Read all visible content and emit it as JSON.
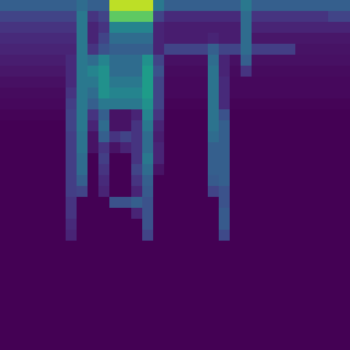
{
  "chart_data": {
    "type": "heatmap",
    "color": "viridis",
    "tick_labels": false,
    "zlim": [
      0,
      100
    ],
    "cells": [
      [
        30,
        30,
        30,
        30,
        30,
        30,
        30,
        35,
        30,
        30,
        90,
        90,
        90,
        90,
        40,
        30,
        30,
        30,
        30,
        30,
        30,
        30,
        40,
        30,
        30,
        30,
        30,
        30,
        30,
        30,
        30,
        30
      ],
      [
        20,
        20,
        20,
        20,
        20,
        20,
        20,
        40,
        15,
        20,
        75,
        75,
        75,
        75,
        20,
        12,
        12,
        12,
        12,
        12,
        12,
        12,
        35,
        15,
        15,
        15,
        15,
        15,
        15,
        15,
        20,
        20
      ],
      [
        15,
        15,
        15,
        15,
        15,
        15,
        15,
        40,
        10,
        15,
        45,
        45,
        45,
        45,
        10,
        8,
        8,
        8,
        8,
        8,
        8,
        8,
        35,
        10,
        10,
        10,
        10,
        10,
        10,
        10,
        10,
        10
      ],
      [
        12,
        12,
        12,
        12,
        12,
        12,
        12,
        40,
        10,
        20,
        35,
        35,
        35,
        35,
        10,
        8,
        8,
        8,
        8,
        10,
        8,
        8,
        35,
        6,
        6,
        6,
        6,
        6,
        6,
        6,
        6,
        6
      ],
      [
        10,
        10,
        10,
        10,
        10,
        10,
        10,
        40,
        15,
        25,
        30,
        30,
        30,
        30,
        10,
        20,
        20,
        20,
        20,
        30,
        20,
        20,
        35,
        18,
        18,
        18,
        18,
        5,
        5,
        5,
        5,
        5
      ],
      [
        8,
        8,
        8,
        8,
        8,
        8,
        12,
        40,
        35,
        45,
        35,
        35,
        35,
        50,
        20,
        4,
        4,
        4,
        4,
        35,
        10,
        4,
        30,
        4,
        4,
        4,
        4,
        4,
        4,
        4,
        4,
        4
      ],
      [
        6,
        6,
        6,
        6,
        6,
        6,
        12,
        40,
        45,
        50,
        35,
        35,
        35,
        55,
        25,
        3,
        3,
        3,
        3,
        38,
        10,
        3,
        15,
        3,
        3,
        3,
        3,
        3,
        3,
        3,
        3,
        3
      ],
      [
        4,
        4,
        4,
        4,
        4,
        4,
        12,
        40,
        40,
        50,
        40,
        40,
        40,
        55,
        20,
        2,
        2,
        2,
        2,
        38,
        12,
        2,
        2,
        2,
        2,
        2,
        2,
        2,
        2,
        2,
        2,
        2
      ],
      [
        3,
        3,
        3,
        3,
        3,
        3,
        15,
        40,
        35,
        50,
        45,
        45,
        45,
        55,
        20,
        2,
        2,
        2,
        2,
        38,
        12,
        2,
        2,
        2,
        2,
        2,
        2,
        2,
        2,
        2,
        2,
        2
      ],
      [
        2,
        2,
        2,
        2,
        2,
        2,
        18,
        40,
        30,
        40,
        40,
        40,
        40,
        50,
        20,
        1,
        1,
        1,
        1,
        38,
        12,
        1,
        1,
        1,
        1,
        1,
        1,
        1,
        1,
        1,
        1,
        1
      ],
      [
        1,
        1,
        1,
        1,
        1,
        1,
        20,
        40,
        15,
        30,
        5,
        5,
        10,
        45,
        15,
        0,
        0,
        0,
        0,
        38,
        25,
        0,
        0,
        0,
        0,
        0,
        0,
        0,
        0,
        0,
        0,
        0
      ],
      [
        0,
        0,
        0,
        0,
        0,
        0,
        20,
        40,
        10,
        35,
        5,
        5,
        15,
        40,
        10,
        0,
        0,
        0,
        0,
        38,
        30,
        0,
        0,
        0,
        0,
        0,
        0,
        0,
        0,
        0,
        0,
        0
      ],
      [
        0,
        0,
        0,
        0,
        0,
        0,
        18,
        38,
        5,
        30,
        15,
        20,
        15,
        35,
        8,
        0,
        0,
        0,
        0,
        35,
        30,
        0,
        0,
        0,
        0,
        0,
        0,
        0,
        0,
        0,
        0,
        0
      ],
      [
        0,
        0,
        0,
        0,
        0,
        0,
        18,
        38,
        5,
        15,
        5,
        10,
        15,
        35,
        10,
        0,
        0,
        0,
        0,
        30,
        30,
        0,
        0,
        0,
        0,
        0,
        0,
        0,
        0,
        0,
        0,
        0
      ],
      [
        0,
        0,
        0,
        0,
        0,
        0,
        18,
        35,
        0,
        18,
        0,
        0,
        15,
        40,
        10,
        0,
        0,
        0,
        0,
        30,
        30,
        0,
        0,
        0,
        0,
        0,
        0,
        0,
        0,
        0,
        0,
        0
      ],
      [
        0,
        0,
        0,
        0,
        0,
        0,
        18,
        35,
        0,
        15,
        0,
        0,
        20,
        35,
        5,
        0,
        0,
        0,
        0,
        30,
        30,
        0,
        0,
        0,
        0,
        0,
        0,
        0,
        0,
        0,
        0,
        0
      ],
      [
        0,
        0,
        0,
        0,
        0,
        0,
        18,
        30,
        0,
        12,
        0,
        0,
        15,
        30,
        0,
        0,
        0,
        0,
        0,
        28,
        30,
        0,
        0,
        0,
        0,
        0,
        0,
        0,
        0,
        0,
        0,
        0
      ],
      [
        0,
        0,
        0,
        0,
        0,
        0,
        18,
        20,
        0,
        10,
        0,
        0,
        10,
        28,
        0,
        0,
        0,
        0,
        0,
        20,
        25,
        0,
        0,
        0,
        0,
        0,
        0,
        0,
        0,
        0,
        0,
        0
      ],
      [
        0,
        0,
        0,
        0,
        0,
        0,
        15,
        0,
        0,
        0,
        25,
        25,
        30,
        25,
        0,
        0,
        0,
        0,
        0,
        0,
        25,
        0,
        0,
        0,
        0,
        0,
        0,
        0,
        0,
        0,
        0,
        0
      ],
      [
        0,
        0,
        0,
        0,
        0,
        0,
        15,
        0,
        0,
        0,
        0,
        0,
        10,
        25,
        0,
        0,
        0,
        0,
        0,
        0,
        28,
        0,
        0,
        0,
        0,
        0,
        0,
        0,
        0,
        0,
        0,
        0
      ],
      [
        0,
        0,
        0,
        0,
        0,
        0,
        12,
        0,
        0,
        0,
        0,
        0,
        0,
        25,
        0,
        0,
        0,
        0,
        0,
        0,
        28,
        0,
        0,
        0,
        0,
        0,
        0,
        0,
        0,
        0,
        0,
        0
      ],
      [
        0,
        0,
        0,
        0,
        0,
        0,
        10,
        0,
        0,
        0,
        0,
        0,
        0,
        20,
        0,
        0,
        0,
        0,
        0,
        0,
        22,
        0,
        0,
        0,
        0,
        0,
        0,
        0,
        0,
        0,
        0,
        0
      ],
      [
        0,
        0,
        0,
        0,
        0,
        0,
        0,
        0,
        0,
        0,
        0,
        0,
        0,
        0,
        0,
        0,
        0,
        0,
        0,
        0,
        0,
        0,
        0,
        0,
        0,
        0,
        0,
        0,
        0,
        0,
        0,
        0
      ],
      [
        0,
        0,
        0,
        0,
        0,
        0,
        0,
        0,
        0,
        0,
        0,
        0,
        0,
        0,
        0,
        0,
        0,
        0,
        0,
        0,
        0,
        0,
        0,
        0,
        0,
        0,
        0,
        0,
        0,
        0,
        0,
        0
      ],
      [
        0,
        0,
        0,
        0,
        0,
        0,
        0,
        0,
        0,
        0,
        0,
        0,
        0,
        0,
        0,
        0,
        0,
        0,
        0,
        0,
        0,
        0,
        0,
        0,
        0,
        0,
        0,
        0,
        0,
        0,
        0,
        0
      ],
      [
        0,
        0,
        0,
        0,
        0,
        0,
        0,
        0,
        0,
        0,
        0,
        0,
        0,
        0,
        0,
        0,
        0,
        0,
        0,
        0,
        0,
        0,
        0,
        0,
        0,
        0,
        0,
        0,
        0,
        0,
        0,
        0
      ],
      [
        0,
        0,
        0,
        0,
        0,
        0,
        0,
        0,
        0,
        0,
        0,
        0,
        0,
        0,
        0,
        0,
        0,
        0,
        0,
        0,
        0,
        0,
        0,
        0,
        0,
        0,
        0,
        0,
        0,
        0,
        0,
        0
      ],
      [
        0,
        0,
        0,
        0,
        0,
        0,
        0,
        0,
        0,
        0,
        0,
        0,
        0,
        0,
        0,
        0,
        0,
        0,
        0,
        0,
        0,
        0,
        0,
        0,
        0,
        0,
        0,
        0,
        0,
        0,
        0,
        0
      ],
      [
        0,
        0,
        0,
        0,
        0,
        0,
        0,
        0,
        0,
        0,
        0,
        0,
        0,
        0,
        0,
        0,
        0,
        0,
        0,
        0,
        0,
        0,
        0,
        0,
        0,
        0,
        0,
        0,
        0,
        0,
        0,
        0
      ],
      [
        0,
        0,
        0,
        0,
        0,
        0,
        0,
        0,
        0,
        0,
        0,
        0,
        0,
        0,
        0,
        0,
        0,
        0,
        0,
        0,
        0,
        0,
        0,
        0,
        0,
        0,
        0,
        0,
        0,
        0,
        0,
        0
      ],
      [
        0,
        0,
        0,
        0,
        0,
        0,
        0,
        0,
        0,
        0,
        0,
        0,
        0,
        0,
        0,
        0,
        0,
        0,
        0,
        0,
        0,
        0,
        0,
        0,
        0,
        0,
        0,
        0,
        0,
        0,
        0,
        0
      ],
      [
        0,
        0,
        0,
        0,
        0,
        0,
        0,
        0,
        0,
        0,
        0,
        0,
        0,
        0,
        0,
        0,
        0,
        0,
        0,
        0,
        0,
        0,
        0,
        0,
        0,
        0,
        0,
        0,
        0,
        0,
        0,
        0
      ]
    ]
  }
}
